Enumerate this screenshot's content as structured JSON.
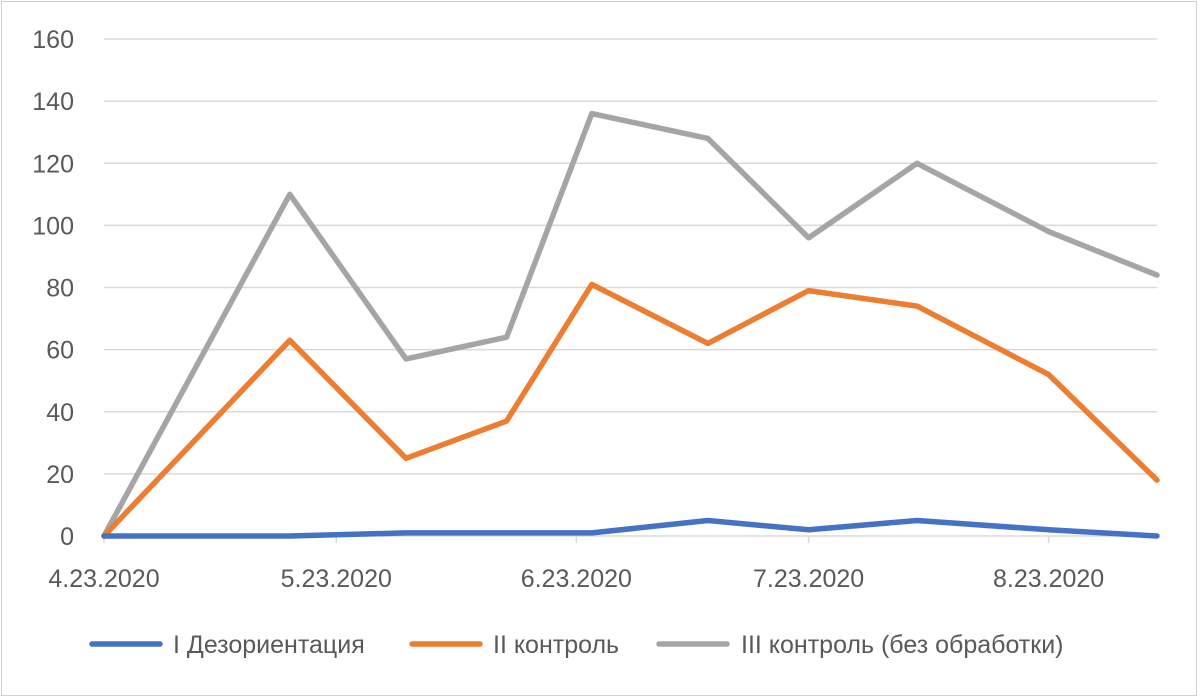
{
  "chart_data": {
    "type": "line",
    "title": "",
    "xlabel": "",
    "ylabel": "",
    "ylim": [
      0,
      160
    ],
    "yticks": [
      0,
      20,
      40,
      60,
      80,
      100,
      120,
      140,
      160
    ],
    "x_tick_labels": [
      "4.23.2020",
      "5.23.2020",
      "6.23.2020",
      "7.23.2020",
      "8.23.2020"
    ],
    "x_tick_dates": [
      "2020-04-23",
      "2020-05-23",
      "2020-06-23",
      "2020-07-23",
      "2020-08-23"
    ],
    "x": [
      "2020-04-23",
      "2020-05-17",
      "2020-06-01",
      "2020-06-14",
      "2020-06-25",
      "2020-07-10",
      "2020-07-23",
      "2020-08-06",
      "2020-08-23",
      "2020-09-06"
    ],
    "xlim": [
      "2020-04-23",
      "2020-09-06"
    ],
    "grid": true,
    "legend_position": "bottom",
    "series": [
      {
        "name": "I Дезориентация",
        "color": "#4472C4",
        "values": [
          0,
          0,
          1,
          1,
          1,
          5,
          2,
          5,
          2,
          0
        ]
      },
      {
        "name": "II контроль",
        "color": "#ED7D31",
        "values": [
          0,
          63,
          25,
          37,
          81,
          62,
          79,
          74,
          52,
          18
        ]
      },
      {
        "name": "III контроль (без обработки)",
        "color": "#A5A5A5",
        "values": [
          0,
          110,
          57,
          64,
          136,
          128,
          96,
          120,
          98,
          84
        ]
      }
    ]
  }
}
